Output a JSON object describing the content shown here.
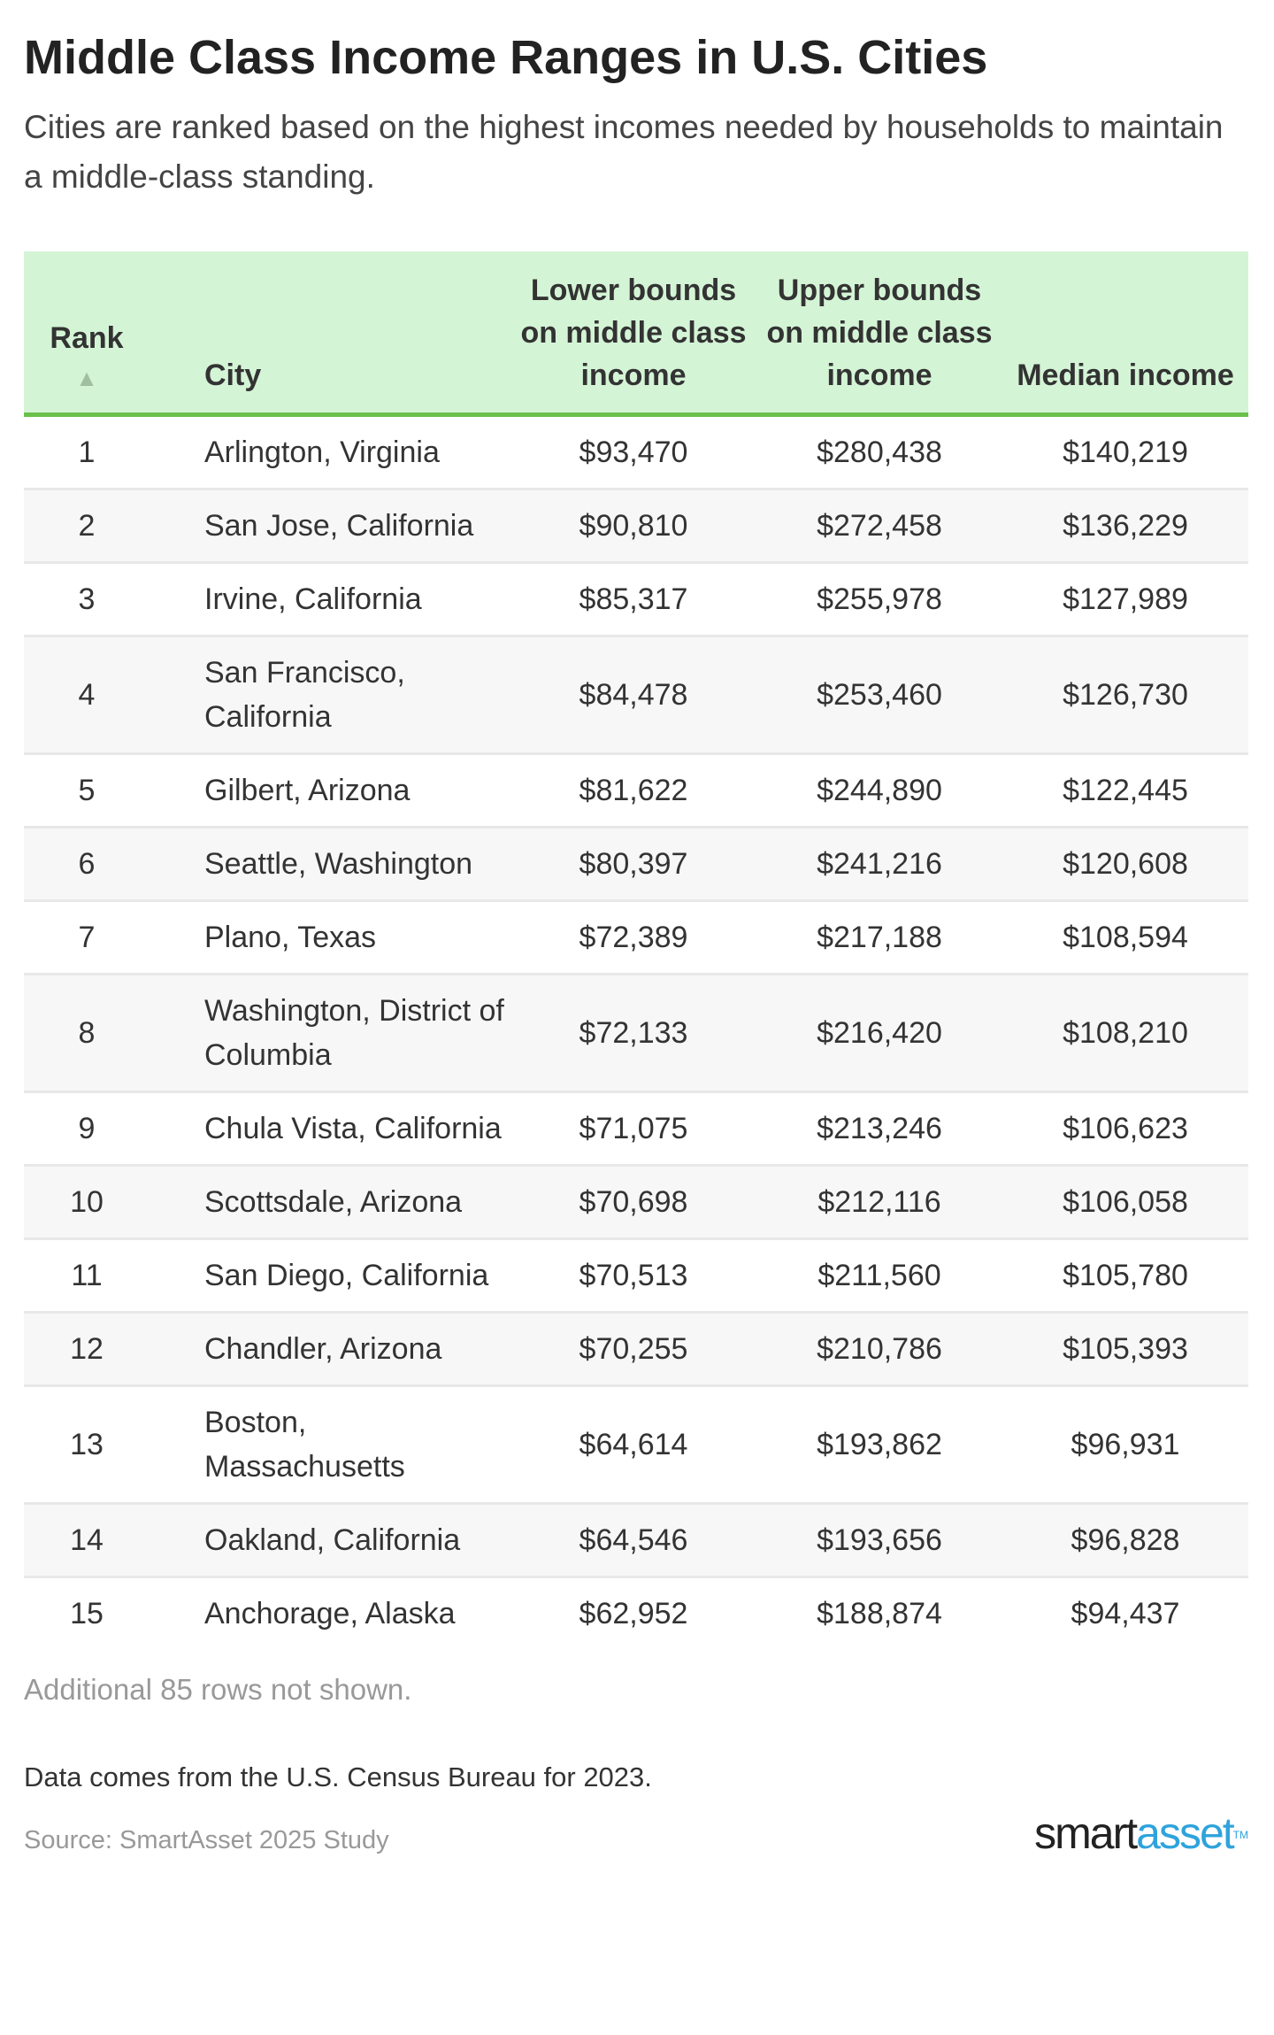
{
  "title": "Middle Class Income Ranges in U.S. Cities",
  "subtitle": "Cities are ranked based on the highest incomes needed by households to maintain a middle-class standing.",
  "table": {
    "headers": {
      "rank": "Rank",
      "city": "City",
      "lower": "Lower bounds on middle class income",
      "upper": "Upper bounds on middle class income",
      "median": "Median income"
    },
    "sort": {
      "column": "rank",
      "direction": "ascending",
      "icon": "triangle-up-icon"
    },
    "rows": [
      {
        "rank": "1",
        "city": "Arlington, Virginia",
        "lower": "$93,470",
        "upper": "$280,438",
        "median": "$140,219"
      },
      {
        "rank": "2",
        "city": "San Jose, California",
        "lower": "$90,810",
        "upper": "$272,458",
        "median": "$136,229"
      },
      {
        "rank": "3",
        "city": "Irvine, California",
        "lower": "$85,317",
        "upper": "$255,978",
        "median": "$127,989"
      },
      {
        "rank": "4",
        "city": "San Francisco, California",
        "lower": "$84,478",
        "upper": "$253,460",
        "median": "$126,730"
      },
      {
        "rank": "5",
        "city": "Gilbert, Arizona",
        "lower": "$81,622",
        "upper": "$244,890",
        "median": "$122,445"
      },
      {
        "rank": "6",
        "city": "Seattle, Washington",
        "lower": "$80,397",
        "upper": "$241,216",
        "median": "$120,608"
      },
      {
        "rank": "7",
        "city": "Plano, Texas",
        "lower": "$72,389",
        "upper": "$217,188",
        "median": "$108,594"
      },
      {
        "rank": "8",
        "city": "Washington, District of Columbia",
        "lower": "$72,133",
        "upper": "$216,420",
        "median": "$108,210"
      },
      {
        "rank": "9",
        "city": "Chula Vista, California",
        "lower": "$71,075",
        "upper": "$213,246",
        "median": "$106,623"
      },
      {
        "rank": "10",
        "city": "Scottsdale, Arizona",
        "lower": "$70,698",
        "upper": "$212,116",
        "median": "$106,058"
      },
      {
        "rank": "11",
        "city": "San Diego, California",
        "lower": "$70,513",
        "upper": "$211,560",
        "median": "$105,780"
      },
      {
        "rank": "12",
        "city": "Chandler, Arizona",
        "lower": "$70,255",
        "upper": "$210,786",
        "median": "$105,393"
      },
      {
        "rank": "13",
        "city": "Boston, Massachusetts",
        "lower": "$64,614",
        "upper": "$193,862",
        "median": "$96,931"
      },
      {
        "rank": "14",
        "city": "Oakland, California",
        "lower": "$64,546",
        "upper": "$193,656",
        "median": "$96,828"
      },
      {
        "rank": "15",
        "city": "Anchorage, Alaska",
        "lower": "$62,952",
        "upper": "$188,874",
        "median": "$94,437"
      }
    ]
  },
  "footer": {
    "rows_note": "Additional 85 rows not shown.",
    "data_note": "Data comes from the U.S. Census Bureau for 2023.",
    "source": "Source: SmartAsset 2025 Study",
    "logo": {
      "part1": "smart",
      "part2": "asset",
      "tm": "TM"
    }
  },
  "colors": {
    "header_bg": "#d4f4d6",
    "header_border": "#6ac04b",
    "logo_blue": "#2ea3dc"
  }
}
